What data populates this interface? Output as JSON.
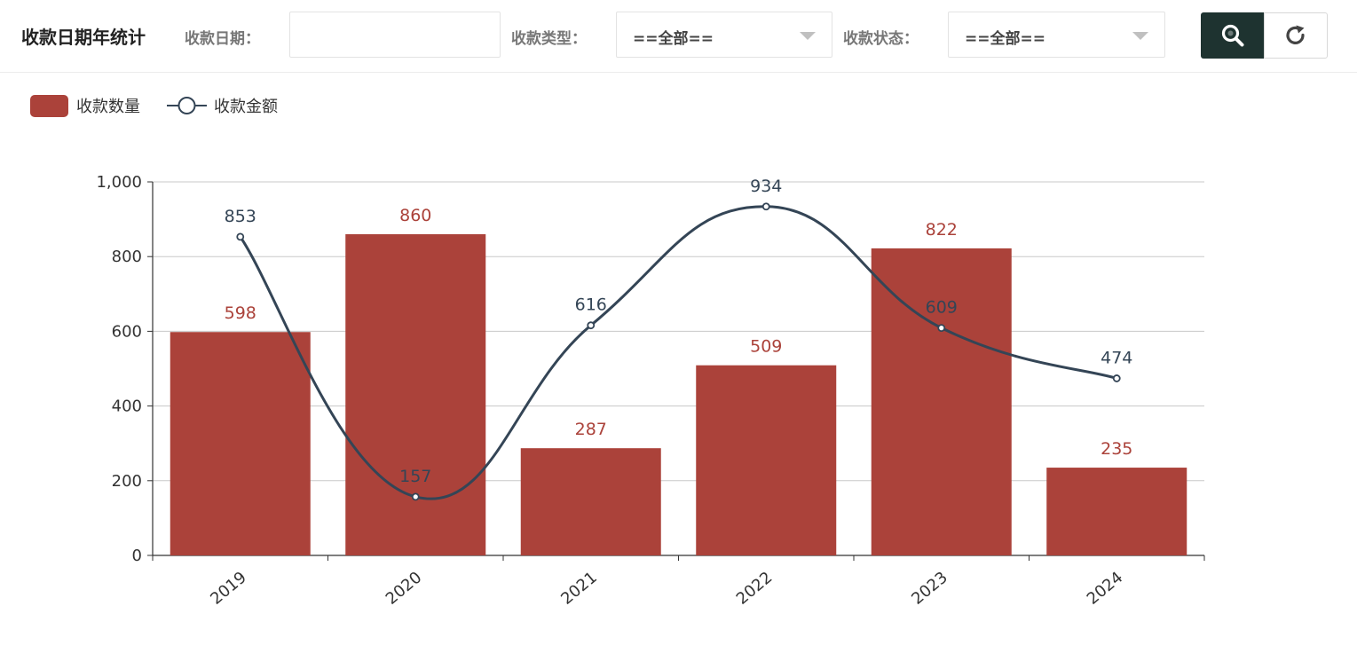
{
  "header": {
    "title": "收款日期年统计",
    "date_label": "收款日期：",
    "date_value": "",
    "type_label": "收款类型：",
    "type_selected": "==全部==",
    "status_label": "收款状态：",
    "status_selected": "==全部=="
  },
  "buttons": {
    "search_icon": "search-icon",
    "reset_icon": "refresh-icon"
  },
  "colors": {
    "bar": "#ab423a",
    "line": "#344556",
    "button_dark": "#1e3330",
    "grid": "#c8c8c8"
  },
  "legend": {
    "bar_label": "收款数量",
    "line_label": "收款金额"
  },
  "chart_data": {
    "type": "bar",
    "categories": [
      "2019",
      "2020",
      "2021",
      "2022",
      "2023",
      "2024"
    ],
    "series": [
      {
        "name": "收款数量",
        "type": "bar",
        "values": [
          598,
          860,
          287,
          509,
          822,
          235
        ]
      },
      {
        "name": "收款金额",
        "type": "line",
        "smooth": true,
        "values": [
          853,
          157,
          616,
          934,
          609,
          474
        ]
      }
    ],
    "ylim": [
      0,
      1000
    ],
    "yticks": [
      "0",
      "200",
      "400",
      "600",
      "800",
      "1,000"
    ],
    "grid": true,
    "legend_position": "top-left",
    "data_labels": true
  }
}
